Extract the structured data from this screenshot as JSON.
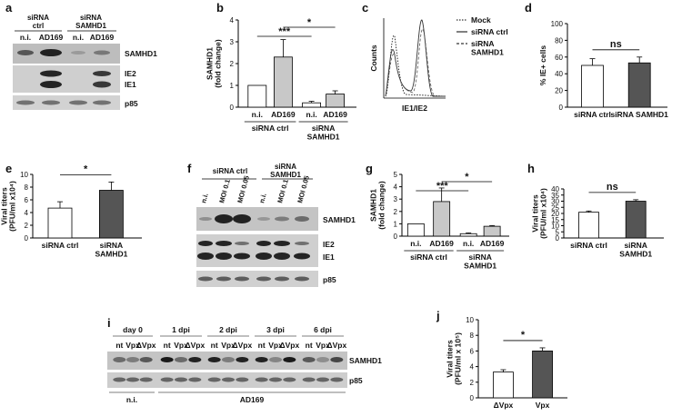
{
  "panel_labels": [
    "a",
    "b",
    "c",
    "d",
    "e",
    "f",
    "g",
    "h",
    "i",
    "j"
  ],
  "blot_a": {
    "groups": [
      "siRNA\nctrl",
      "siRNA\nSAMHD1"
    ],
    "lanes": [
      "n.i.",
      "AD169",
      "n.i.",
      "AD169"
    ],
    "bands": [
      "SAMHD1",
      "IE2",
      "IE1",
      "p85"
    ]
  },
  "blot_f": {
    "groups": [
      "siRNA ctrl",
      "siRNA\nSAMHD1"
    ],
    "lanes": [
      "n.i.",
      "MOI 0.1",
      "MOI 0.05",
      "n.i.",
      "MOI 0.1",
      "MOI 0.05"
    ],
    "bands": [
      "SAMHD1",
      "IE2",
      "IE1",
      "p85"
    ]
  },
  "blot_i": {
    "timepoints": [
      "day 0",
      "1 dpi",
      "2 dpi",
      "3 dpi",
      "6 dpi"
    ],
    "lanes": [
      "nt",
      "Vpx",
      "ΔVpx"
    ],
    "bands": [
      "SAMHD1",
      "p85"
    ],
    "bottom_groups": [
      "n.i.",
      "AD169"
    ]
  },
  "flow_c": {
    "ylabel": "Counts",
    "xlabel": "IE1/IE2",
    "legend": [
      "Mock",
      "siRNA ctrl",
      "siRNA\nSAMHD1"
    ]
  },
  "chart_data": [
    {
      "id": "b",
      "type": "bar",
      "categories": [
        "n.i.",
        "AD169",
        "n.i.",
        "AD169"
      ],
      "groups": [
        "siRNA ctrl",
        "siRNA\nSAMHD1"
      ],
      "values": [
        1.0,
        2.3,
        0.2,
        0.6
      ],
      "errors": [
        0,
        0.8,
        0.07,
        0.15
      ],
      "colors": [
        "#ffffff",
        "#c8c8c8",
        "#ffffff",
        "#c8c8c8"
      ],
      "ylabel": "SAMHD1\n(fold change)",
      "ylim": [
        0,
        4
      ],
      "yticks": [
        "0",
        "1",
        "2",
        "3",
        "4"
      ],
      "significance": [
        "***",
        "*"
      ]
    },
    {
      "id": "d",
      "type": "bar",
      "categories": [
        "siRNA ctrl",
        "siRNA SAMHD1"
      ],
      "values": [
        50,
        53
      ],
      "errors": [
        8,
        7
      ],
      "colors": [
        "#ffffff",
        "#555555"
      ],
      "ylabel": "% IE+ cells",
      "ylim": [
        0,
        100
      ],
      "yticks": [
        "0",
        "20",
        "40",
        "60",
        "80",
        "100"
      ],
      "significance": [
        "ns"
      ]
    },
    {
      "id": "e",
      "type": "bar",
      "categories": [
        "siRNA ctrl",
        "siRNA\nSAMHD1"
      ],
      "values": [
        4.7,
        7.5
      ],
      "errors": [
        1.0,
        1.3
      ],
      "colors": [
        "#ffffff",
        "#555555"
      ],
      "ylabel": "Viral titers\n(PFU/ml x10⁴)",
      "ylim": [
        0,
        10
      ],
      "yticks": [
        "0",
        "2",
        "4",
        "6",
        "8",
        "10"
      ],
      "significance": [
        "*"
      ]
    },
    {
      "id": "g",
      "type": "bar",
      "categories": [
        "n.i.",
        "AD169",
        "n.i.",
        "AD169"
      ],
      "groups": [
        "siRNA ctrl",
        "siRNA\nSAMHD1"
      ],
      "values": [
        1.0,
        2.8,
        0.2,
        0.8
      ],
      "errors": [
        0,
        1.1,
        0.06,
        0.06
      ],
      "colors": [
        "#ffffff",
        "#c8c8c8",
        "#ffffff",
        "#c8c8c8"
      ],
      "ylabel": "SAMHD1\n(fold change)",
      "ylim": [
        0,
        5
      ],
      "yticks": [
        "0",
        "1",
        "2",
        "3",
        "4",
        "5"
      ],
      "significance": [
        "***",
        "*"
      ]
    },
    {
      "id": "h",
      "type": "bar",
      "categories": [
        "siRNA ctrl",
        "siRNA\nSAMHD1"
      ],
      "values": [
        21,
        30
      ],
      "errors": [
        1.0,
        1.2
      ],
      "colors": [
        "#ffffff",
        "#555555"
      ],
      "ylabel": "Viral titers\n(PFU/ml x10⁴)",
      "ylim": [
        0,
        40
      ],
      "yticks": [
        "0",
        "5",
        "10",
        "15",
        "20",
        "25",
        "30",
        "35",
        "40"
      ],
      "significance": [
        "ns"
      ]
    },
    {
      "id": "j",
      "type": "bar",
      "categories": [
        "ΔVpx",
        "Vpx"
      ],
      "values": [
        3.3,
        6.0
      ],
      "errors": [
        0.3,
        0.4
      ],
      "colors": [
        "#ffffff",
        "#555555"
      ],
      "ylabel": "Viral titers\n(PFU/ml x 10⁵)",
      "ylim": [
        0,
        10
      ],
      "yticks": [
        "0",
        "2",
        "4",
        "6",
        "8",
        "10"
      ],
      "significance": [
        "*"
      ]
    }
  ]
}
